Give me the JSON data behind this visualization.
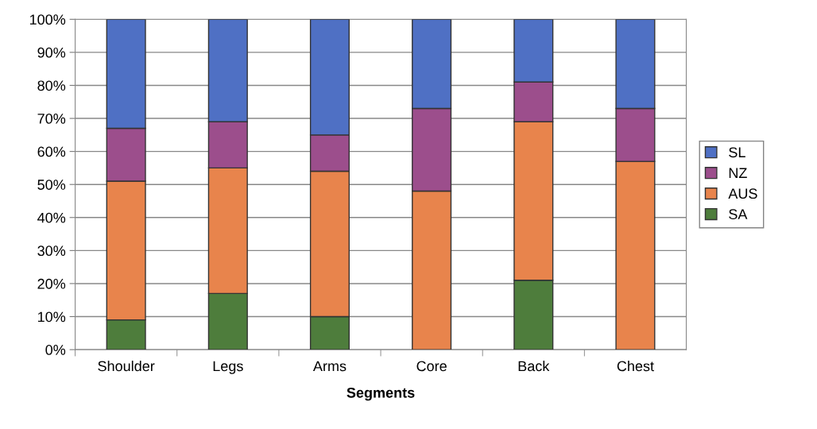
{
  "chart_data": {
    "type": "bar",
    "stacked": true,
    "xlabel": "Segments",
    "categories": [
      "Shoulder",
      "Legs",
      "Arms",
      "Core",
      "Back",
      "Chest"
    ],
    "series": [
      {
        "name": "SA",
        "color": "#4e7d3c",
        "values": [
          9,
          17,
          10,
          0,
          21,
          0
        ]
      },
      {
        "name": "AUS",
        "color": "#e8844c",
        "values": [
          42,
          38,
          44,
          48,
          48,
          57
        ]
      },
      {
        "name": "NZ",
        "color": "#9c4e8c",
        "values": [
          16,
          14,
          11,
          25,
          12,
          16
        ]
      },
      {
        "name": "SL",
        "color": "#4f70c4",
        "values": [
          33,
          31,
          35,
          27,
          19,
          27
        ]
      }
    ],
    "ylim": [
      0,
      100
    ],
    "yticks": [
      {
        "value": 0,
        "label": "0%"
      },
      {
        "value": 10,
        "label": "10%"
      },
      {
        "value": 20,
        "label": "20%"
      },
      {
        "value": 30,
        "label": "30%"
      },
      {
        "value": 40,
        "label": "40%"
      },
      {
        "value": 50,
        "label": "50%"
      },
      {
        "value": 60,
        "label": "60%"
      },
      {
        "value": 70,
        "label": "70%"
      },
      {
        "value": 80,
        "label": "80%"
      },
      {
        "value": 90,
        "label": "90%"
      },
      {
        "value": 100,
        "label": "100%"
      }
    ],
    "grid": "y",
    "legend": "right"
  }
}
